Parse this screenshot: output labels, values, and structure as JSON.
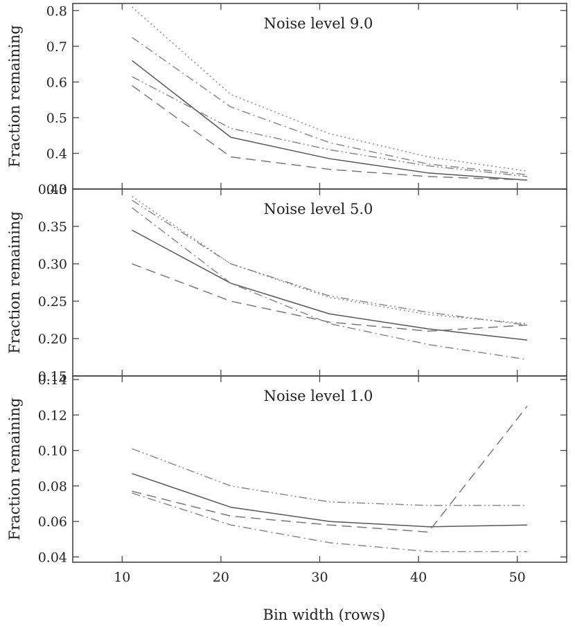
{
  "chart_data": [
    {
      "type": "line",
      "title": "Noise level 9.0",
      "ylabel": "Fraction remaining",
      "xlabel": "",
      "xlim": [
        5,
        55
      ],
      "ylim": [
        0.3,
        0.82
      ],
      "x_ticks": [
        10,
        20,
        30,
        40,
        50
      ],
      "x_tick_labels": [
        "",
        "",
        "",
        "",
        ""
      ],
      "y_ticks": [
        0.3,
        0.4,
        0.5,
        0.6,
        0.7,
        0.8
      ],
      "y_tick_labels": [
        "0.3",
        "0.4",
        "0.5",
        "0.6",
        "0.7",
        "0.8"
      ],
      "x": [
        11,
        21,
        31,
        41,
        51
      ],
      "series": [
        {
          "name": "solid",
          "values": [
            0.66,
            0.445,
            0.385,
            0.345,
            0.325
          ],
          "color": "#555555"
        },
        {
          "name": "dashed",
          "values": [
            0.59,
            0.39,
            0.355,
            0.335,
            0.325
          ],
          "color": "#777777"
        },
        {
          "name": "dotted",
          "values": [
            0.81,
            0.565,
            0.455,
            0.39,
            0.35
          ],
          "color": "#888888"
        },
        {
          "name": "dash-dot",
          "values": [
            0.725,
            0.53,
            0.43,
            0.37,
            0.34
          ],
          "color": "#888888"
        },
        {
          "name": "dash-dot-dot",
          "values": [
            0.615,
            0.47,
            0.41,
            0.365,
            0.335
          ],
          "color": "#888888"
        }
      ]
    },
    {
      "type": "line",
      "title": "Noise level 5.0",
      "ylabel": "Fraction remaining",
      "xlabel": "",
      "xlim": [
        5,
        55
      ],
      "ylim": [
        0.15,
        0.4
      ],
      "x_ticks": [
        10,
        20,
        30,
        40,
        50
      ],
      "x_tick_labels": [
        "",
        "",
        "",
        "",
        ""
      ],
      "y_ticks": [
        0.15,
        0.2,
        0.25,
        0.3,
        0.35,
        0.4
      ],
      "y_tick_labels": [
        "0.15",
        "0.20",
        "0.25",
        "0.30",
        "0.35",
        "0.40"
      ],
      "x": [
        11,
        21,
        31,
        41,
        51
      ],
      "series": [
        {
          "name": "solid",
          "values": [
            0.345,
            0.274,
            0.233,
            0.213,
            0.198
          ],
          "color": "#555555"
        },
        {
          "name": "dashed",
          "values": [
            0.3,
            0.25,
            0.222,
            0.21,
            0.218
          ],
          "color": "#777777"
        },
        {
          "name": "dotted",
          "values": [
            0.39,
            0.3,
            0.255,
            0.232,
            0.22
          ],
          "color": "#888888"
        },
        {
          "name": "dash-dot",
          "values": [
            0.375,
            0.274,
            0.22,
            0.192,
            0.172
          ],
          "color": "#888888"
        },
        {
          "name": "dash-dot-dot",
          "values": [
            0.385,
            0.3,
            0.257,
            0.235,
            0.218
          ],
          "color": "#888888"
        }
      ]
    },
    {
      "type": "line",
      "title": "Noise level 1.0",
      "ylabel": "Fraction remaining",
      "xlabel": "Bin width (rows)",
      "xlim": [
        5,
        55
      ],
      "ylim": [
        0.037,
        0.142
      ],
      "x_ticks": [
        10,
        20,
        30,
        40,
        50
      ],
      "x_tick_labels": [
        "10",
        "20",
        "30",
        "40",
        "50"
      ],
      "y_ticks": [
        0.04,
        0.06,
        0.08,
        0.1,
        0.12,
        0.14
      ],
      "y_tick_labels": [
        "0.04",
        "0.06",
        "0.08",
        "0.10",
        "0.12",
        "0.14"
      ],
      "x": [
        11,
        21,
        31,
        41,
        51
      ],
      "series": [
        {
          "name": "solid",
          "values": [
            0.087,
            0.068,
            0.06,
            0.057,
            0.058
          ],
          "color": "#555555"
        },
        {
          "name": "dashed",
          "values": [
            0.077,
            0.063,
            0.058,
            0.054,
            0.125
          ],
          "color": "#777777"
        },
        {
          "name": "dash-dot",
          "values": [
            0.076,
            0.058,
            0.048,
            0.043,
            0.043
          ],
          "color": "#888888"
        },
        {
          "name": "dash-dot-dot",
          "values": [
            0.101,
            0.08,
            0.071,
            0.069,
            0.069
          ],
          "color": "#888888"
        }
      ]
    }
  ]
}
